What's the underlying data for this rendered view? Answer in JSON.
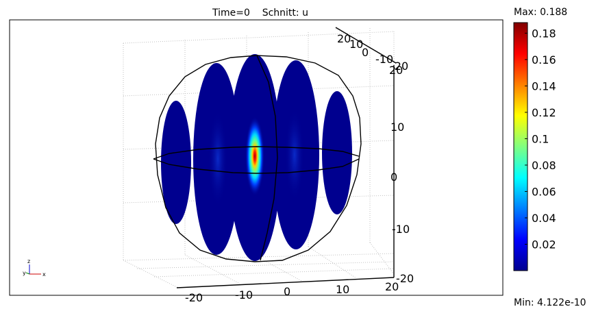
{
  "chart_data": {
    "type": "heatmap",
    "title": "Time=0    Schnitt: u",
    "colorbar": {
      "max_label": "Max: 0.188",
      "min_label": "Min: 4.122e-10",
      "max": 0.188,
      "min": 4.122e-10,
      "ticks": [
        "0.02",
        "0.04",
        "0.06",
        "0.08",
        "0.1",
        "0.12",
        "0.14",
        "0.16",
        "0.18"
      ],
      "tick_values": [
        0.02,
        0.04,
        0.06,
        0.08,
        0.1,
        0.12,
        0.14,
        0.16,
        0.18
      ]
    },
    "axes": {
      "x_ticks": [
        "-20",
        "-10",
        "0",
        "10",
        "20"
      ],
      "y_ticks": [
        "20",
        "10",
        "0",
        "-10"
      ],
      "z_ticks": [
        "20",
        "10",
        "0",
        "-10",
        "-20"
      ],
      "z_top_tick": "-20",
      "triad": {
        "x": "x",
        "y": "y",
        "z": "z"
      },
      "range": [
        -20,
        20
      ]
    },
    "slices": [
      {
        "position": -16,
        "peak": 0.01
      },
      {
        "position": -8,
        "peak": 0.03
      },
      {
        "position": 0,
        "peak": 0.188
      },
      {
        "position": 8,
        "peak": 0.03
      },
      {
        "position": 16,
        "peak": 0.01
      }
    ],
    "grid": true
  }
}
